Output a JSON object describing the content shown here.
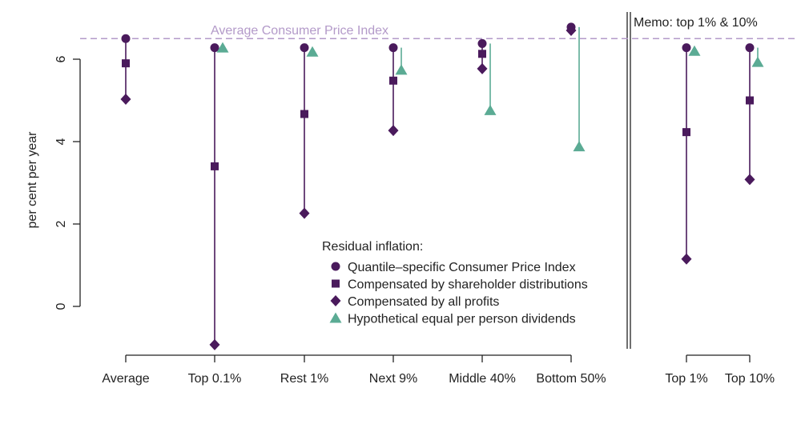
{
  "chart_data": {
    "type": "scatter",
    "ylabel": "per cent per year",
    "ylim": [
      -1.2,
      7.0
    ],
    "yticks": [
      0,
      2,
      4,
      6
    ],
    "reference_line": {
      "label": "Average Consumer Price Index",
      "value": 6.5,
      "color": "#b39ac9"
    },
    "memo_label": "Memo: top 1% & 10%",
    "categories": [
      "Average",
      "Top 0.1%",
      "Rest 1%",
      "Next 9%",
      "Middle 40%",
      "Bottom 50%",
      "Top 1%",
      "Top 10%"
    ],
    "legend": {
      "title": "Residual inflation:",
      "position": "center"
    },
    "series": [
      {
        "name": "Quantile–specific Consumer Price Index",
        "marker": "circle",
        "color": "#4a1a5c",
        "values": [
          6.5,
          6.28,
          6.28,
          6.28,
          6.38,
          6.78,
          6.28,
          6.28
        ]
      },
      {
        "name": "Compensated by shareholder distributions",
        "marker": "square",
        "color": "#4a1a5c",
        "values": [
          5.9,
          3.4,
          4.67,
          5.48,
          6.13,
          null,
          4.23,
          5.0
        ]
      },
      {
        "name": "Compensated by all profits",
        "marker": "diamond",
        "color": "#4a1a5c",
        "values": [
          5.03,
          -0.93,
          2.26,
          4.27,
          5.77,
          6.7,
          1.15,
          3.08
        ]
      },
      {
        "name": "Hypothetical equal per person dividends",
        "marker": "triangle",
        "color": "#5bab94",
        "values": [
          null,
          6.28,
          6.18,
          5.74,
          4.76,
          3.88,
          6.2,
          5.93
        ]
      }
    ]
  }
}
